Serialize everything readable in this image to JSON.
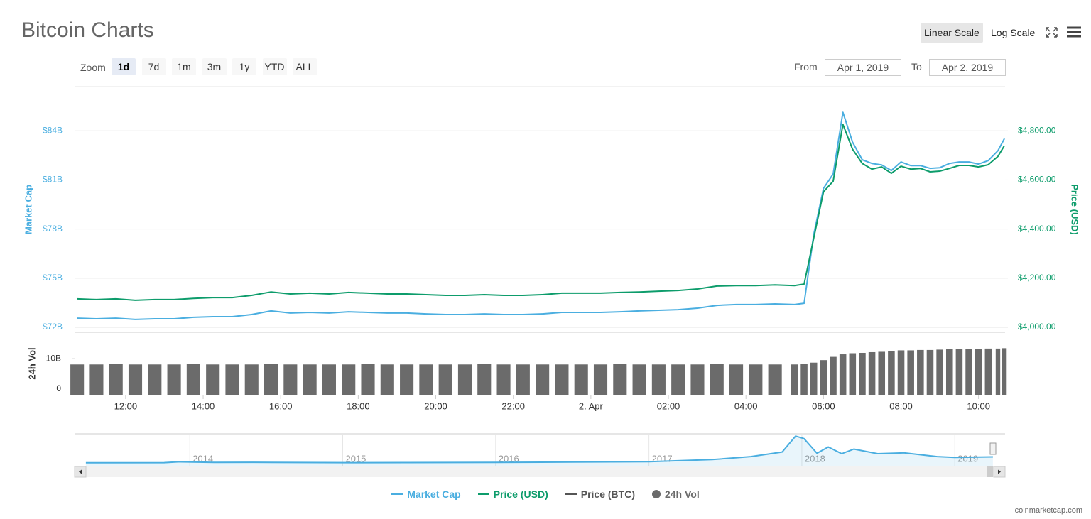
{
  "ui": {
    "title": "Bitcoin Charts",
    "scale_buttons": [
      "Linear Scale",
      "Log Scale"
    ],
    "scale_selected": 0,
    "zoom_label": "Zoom",
    "zoom_buttons": [
      "1d",
      "7d",
      "1m",
      "3m",
      "1y",
      "YTD",
      "ALL"
    ],
    "zoom_selected": 0,
    "from_label": "From",
    "from": "Apr 1, 2019",
    "to_label": "To",
    "to": "Apr 2, 2019",
    "credit": "coinmarketcap.com"
  },
  "chart_data": [
    {
      "type": "line",
      "x": [
        "2019-04-01T10:45",
        "2019-04-01T11:15",
        "2019-04-01T11:45",
        "2019-04-01T12:15",
        "2019-04-01T12:45",
        "2019-04-01T13:15",
        "2019-04-01T13:45",
        "2019-04-01T14:15",
        "2019-04-01T14:45",
        "2019-04-01T15:15",
        "2019-04-01T15:45",
        "2019-04-01T16:15",
        "2019-04-01T16:45",
        "2019-04-01T17:15",
        "2019-04-01T17:45",
        "2019-04-01T18:15",
        "2019-04-01T18:45",
        "2019-04-01T19:15",
        "2019-04-01T19:45",
        "2019-04-01T20:15",
        "2019-04-01T20:45",
        "2019-04-01T21:15",
        "2019-04-01T21:45",
        "2019-04-01T22:15",
        "2019-04-01T22:45",
        "2019-04-01T23:15",
        "2019-04-01T23:45",
        "2019-04-02T00:15",
        "2019-04-02T00:45",
        "2019-04-02T01:15",
        "2019-04-02T01:45",
        "2019-04-02T02:15",
        "2019-04-02T02:45",
        "2019-04-02T03:15",
        "2019-04-02T03:45",
        "2019-04-02T04:15",
        "2019-04-02T04:45",
        "2019-04-02T05:15",
        "2019-04-02T05:30",
        "2019-04-02T05:45",
        "2019-04-02T06:00",
        "2019-04-02T06:15",
        "2019-04-02T06:30",
        "2019-04-02T06:45",
        "2019-04-02T07:00",
        "2019-04-02T07:15",
        "2019-04-02T07:30",
        "2019-04-02T07:45",
        "2019-04-02T08:00",
        "2019-04-02T08:15",
        "2019-04-02T08:30",
        "2019-04-02T08:45",
        "2019-04-02T09:00",
        "2019-04-02T09:15",
        "2019-04-02T09:30",
        "2019-04-02T09:45",
        "2019-04-02T10:00",
        "2019-04-02T10:15",
        "2019-04-02T10:30",
        "2019-04-02T10:40"
      ],
      "xlim": [
        "2019-04-01T10:41",
        "2019-04-02T10:41"
      ],
      "xticks": [
        {
          "value": "2019-04-01T12:00",
          "label": "12:00"
        },
        {
          "value": "2019-04-01T14:00",
          "label": "14:00"
        },
        {
          "value": "2019-04-01T16:00",
          "label": "16:00"
        },
        {
          "value": "2019-04-01T18:00",
          "label": "18:00"
        },
        {
          "value": "2019-04-01T20:00",
          "label": "20:00"
        },
        {
          "value": "2019-04-01T22:00",
          "label": "22:00"
        },
        {
          "value": "2019-04-02T00:00",
          "label": "2. Apr"
        },
        {
          "value": "2019-04-02T02:00",
          "label": "02:00"
        },
        {
          "value": "2019-04-02T04:00",
          "label": "04:00"
        },
        {
          "value": "2019-04-02T06:00",
          "label": "06:00"
        },
        {
          "value": "2019-04-02T08:00",
          "label": "08:00"
        },
        {
          "value": "2019-04-02T10:00",
          "label": "10:00"
        }
      ],
      "ylabel": "Market Cap",
      "ylim": [
        72,
        86.7
      ],
      "yticks": [
        {
          "value": 72,
          "label": "$72B"
        },
        {
          "value": 75,
          "label": "$75B"
        },
        {
          "value": 78,
          "label": "$78B"
        },
        {
          "value": 81,
          "label": "$81B"
        },
        {
          "value": 84,
          "label": "$84B"
        }
      ],
      "y2label": "Price (USD)",
      "y2lim": [
        4000,
        4980
      ],
      "y2ticks": [
        {
          "value": 4000,
          "label": "$4,000.00"
        },
        {
          "value": 4200,
          "label": "$4,200.00"
        },
        {
          "value": 4400,
          "label": "$4,400.00"
        },
        {
          "value": 4600,
          "label": "$4,600.00"
        },
        {
          "value": 4800,
          "label": "$4,800.00"
        }
      ],
      "volume": {
        "ylabel": "24h Vol",
        "ylim": [
          0,
          17.3
        ],
        "yticks": [
          0,
          {
            "value": 10,
            "label": "10B"
          }
        ]
      },
      "grid": true,
      "series": [
        {
          "name": "Market Cap",
          "color": "#4aaee0",
          "values": [
            72.56,
            72.52,
            72.56,
            72.48,
            72.52,
            72.52,
            72.61,
            72.65,
            72.65,
            72.78,
            73.0,
            72.87,
            72.91,
            72.87,
            72.95,
            72.91,
            72.87,
            72.87,
            72.82,
            72.78,
            72.78,
            72.82,
            72.78,
            72.78,
            72.82,
            72.91,
            72.91,
            72.91,
            72.95,
            73.0,
            73.04,
            73.08,
            73.17,
            73.34,
            73.39,
            73.39,
            73.43,
            73.39,
            73.47,
            77.68,
            80.49,
            81.36,
            85.13,
            83.31,
            82.23,
            82.01,
            81.92,
            81.58,
            82.1,
            81.88,
            81.88,
            81.71,
            81.75,
            82.01,
            82.1,
            82.1,
            81.97,
            82.18,
            82.79,
            83.53
          ]
        },
        {
          "name": "Price (USD)",
          "color": "#0d9c6b",
          "axis": "y2",
          "values": [
            4116,
            4113,
            4116,
            4110,
            4113,
            4113,
            4118,
            4121,
            4121,
            4130,
            4144,
            4136,
            4139,
            4136,
            4142,
            4139,
            4136,
            4136,
            4133,
            4130,
            4130,
            4133,
            4130,
            4130,
            4133,
            4139,
            4139,
            4139,
            4142,
            4144,
            4147,
            4150,
            4156,
            4168,
            4170,
            4170,
            4173,
            4170,
            4176,
            4364,
            4552,
            4595,
            4826,
            4725,
            4667,
            4644,
            4653,
            4627,
            4656,
            4644,
            4647,
            4633,
            4636,
            4647,
            4659,
            4659,
            4653,
            4662,
            4696,
            4740
          ]
        },
        {
          "name": "Price (BTC)",
          "color": "#555555",
          "visible": false
        },
        {
          "name": "24h Vol",
          "color": "#6b6b6b",
          "type": "bar",
          "axis": "volume",
          "values": [
            8.4,
            8.4,
            8.5,
            8.4,
            8.4,
            8.4,
            8.5,
            8.4,
            8.4,
            8.4,
            8.5,
            8.4,
            8.4,
            8.4,
            8.4,
            8.5,
            8.4,
            8.4,
            8.4,
            8.4,
            8.4,
            8.5,
            8.4,
            8.4,
            8.4,
            8.4,
            8.4,
            8.4,
            8.5,
            8.4,
            8.4,
            8.4,
            8.4,
            8.5,
            8.4,
            8.4,
            8.4,
            8.4,
            8.5,
            8.9,
            9.6,
            10.5,
            11.2,
            11.5,
            11.6,
            11.8,
            11.9,
            12.0,
            12.3,
            12.3,
            12.4,
            12.4,
            12.5,
            12.6,
            12.6,
            12.7,
            12.7,
            12.8,
            12.8,
            12.9
          ]
        }
      ]
    },
    {
      "type": "area",
      "color": "#4aaee0",
      "x": [
        "2013-04-28",
        "2013-11-01",
        "2013-12-04",
        "2014-03-01",
        "2014-06-01",
        "2015-01-15",
        "2016-01-01",
        "2016-07-01",
        "2017-01-01",
        "2017-06-01",
        "2017-09-01",
        "2017-11-15",
        "2017-12-17",
        "2018-01-06",
        "2018-02-06",
        "2018-03-05",
        "2018-04-06",
        "2018-05-05",
        "2018-07-01",
        "2018-09-01",
        "2018-11-20",
        "2019-01-01",
        "2019-04-02"
      ],
      "values": [
        1.5,
        3,
        13,
        7,
        8,
        3.5,
        6.5,
        10,
        15,
        40,
        75,
        130,
        320,
        290,
        115,
        190,
        110,
        165,
        110,
        120,
        75,
        65,
        72
      ],
      "xlim": [
        "2013-04-01",
        "2019-05-01"
      ],
      "ylim": [
        0,
        330
      ],
      "xticks": [
        {
          "value": "2014-01-01",
          "label": "2014"
        },
        {
          "value": "2015-01-01",
          "label": "2015"
        },
        {
          "value": "2016-01-01",
          "label": "2016"
        },
        {
          "value": "2017-01-01",
          "label": "2017"
        },
        {
          "value": "2018-01-01",
          "label": "2018"
        },
        {
          "value": "2019-01-01",
          "label": "2019"
        }
      ]
    }
  ]
}
